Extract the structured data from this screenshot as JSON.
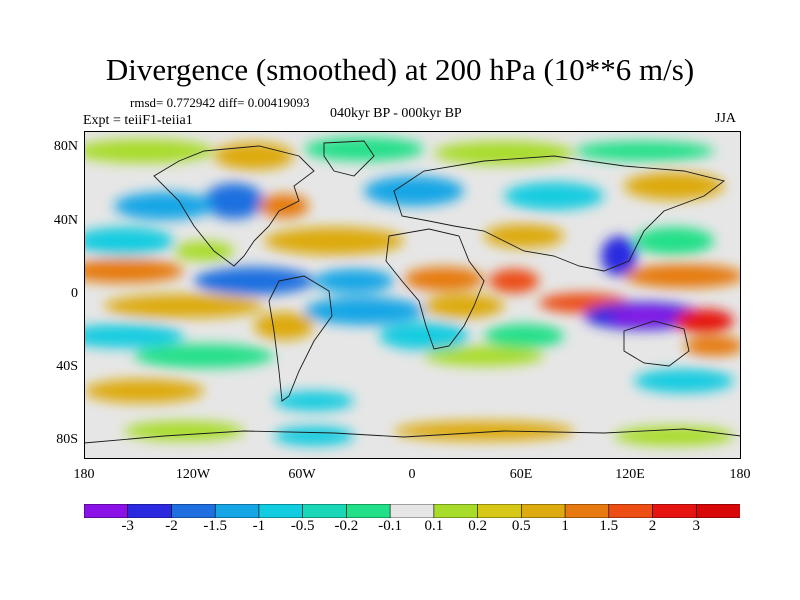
{
  "title": "Divergence (smoothed) at 200 hPa (10**6 m/s)",
  "stats": "rmsd= 0.772942 diff= 0.00419093",
  "experiment": "Expt = teiiF1-teiia1",
  "period": "040kyr BP - 000kyr BP",
  "season": "JJA",
  "lat_labels": [
    "80N",
    "40N",
    "0",
    "40S",
    "80S"
  ],
  "lon_labels": [
    "180",
    "120W",
    "60W",
    "0",
    "60E",
    "120E",
    "180"
  ],
  "colorbar": {
    "labels": [
      "-3",
      "-2",
      "-1.5",
      "-1",
      "-0.5",
      "-0.2",
      "-0.1",
      "0.1",
      "0.2",
      "0.5",
      "1",
      "1.5",
      "2",
      "3"
    ],
    "colors": [
      "#8a12e6",
      "#2c2ae0",
      "#1f6fe0",
      "#16a6e6",
      "#12cce0",
      "#1ad7b8",
      "#22e088",
      "#e6e6e6",
      "#a8dc2a",
      "#d7c818",
      "#ddaa10",
      "#e67a10",
      "#ec4e14",
      "#e61410",
      "#d80808"
    ]
  },
  "map_colors": {
    "ocean_bg": "#e6e6e6",
    "coast": "#1a1a1a"
  }
}
